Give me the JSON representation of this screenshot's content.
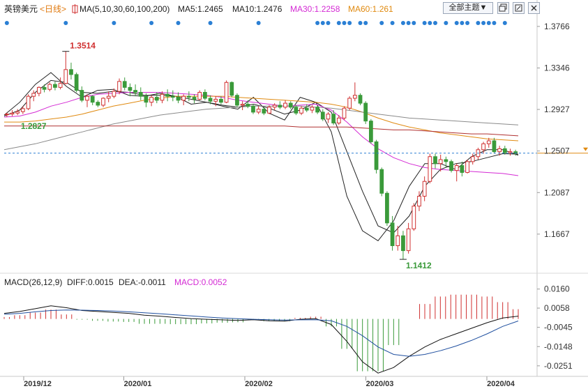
{
  "header": {
    "symbol": "英镑美元",
    "period": "<日线>",
    "ma_label": "MA(5,10,30,60,100,200)",
    "ma5": "MA5:1.2465",
    "ma10": "MA10:1.2476",
    "ma30": "MA30:1.2258",
    "ma60": "MA60:1.261",
    "theme_button": "全部主题▼",
    "icons": [
      "restore-window-icon",
      "minimize-window-icon",
      "close-icon"
    ]
  },
  "macd_header": {
    "label": "MACD(26,12,9)",
    "diff": "DIFF:0.0015",
    "dea": "DEA:-0.0011",
    "macd": "MACD:0.0052"
  },
  "colors": {
    "up": "#d03030",
    "down": "#3a9a3a",
    "ma5": "#222222",
    "ma10": "#222222",
    "ma30": "#d42ad4",
    "ma60": "#e08a10",
    "ma100": "#8a8a8a",
    "ma200": "#b03030",
    "event_dot": "#2a7fd4",
    "current_price_line": "#2a7fd4"
  },
  "chart_data": [
    {
      "type": "candlestick",
      "title": "英镑美元 日线",
      "x_ticks": [
        "2019/12",
        "2020/01",
        "2020/02",
        "2020/03",
        "2020/04"
      ],
      "y_ticks": [
        "1.3766",
        "1.3346",
        "1.2927",
        "1.2507",
        "1.2087",
        "1.1667"
      ],
      "ylim": [
        1.13,
        1.385
      ],
      "annotations": [
        {
          "text": "1.3514",
          "kind": "high"
        },
        {
          "text": "1.2827",
          "kind": "start"
        },
        {
          "text": "1.1412",
          "kind": "low"
        }
      ],
      "current_price": 1.2485,
      "candles": [
        [
          1.2874,
          1.2893,
          1.285,
          1.288
        ],
        [
          1.288,
          1.292,
          1.286,
          1.289
        ],
        [
          1.289,
          1.293,
          1.287,
          1.2905
        ],
        [
          1.2905,
          1.296,
          1.288,
          1.2935
        ],
        [
          1.2935,
          1.308,
          1.292,
          1.306
        ],
        [
          1.306,
          1.312,
          1.301,
          1.309
        ],
        [
          1.309,
          1.316,
          1.306,
          1.315
        ],
        [
          1.315,
          1.318,
          1.31,
          1.313
        ],
        [
          1.313,
          1.32,
          1.311,
          1.318
        ],
        [
          1.318,
          1.321,
          1.312,
          1.315
        ],
        [
          1.315,
          1.325,
          1.313,
          1.319
        ],
        [
          1.319,
          1.3514,
          1.318,
          1.333
        ],
        [
          1.333,
          1.34,
          1.323,
          1.328
        ],
        [
          1.328,
          1.33,
          1.31,
          1.312
        ],
        [
          1.312,
          1.316,
          1.3,
          1.302
        ],
        [
          1.302,
          1.308,
          1.295,
          1.306
        ],
        [
          1.306,
          1.307,
          1.297,
          1.3
        ],
        [
          1.3,
          1.302,
          1.295,
          1.297
        ],
        [
          1.297,
          1.305,
          1.295,
          1.304
        ],
        [
          1.304,
          1.311,
          1.3,
          1.306
        ],
        [
          1.306,
          1.314,
          1.304,
          1.311
        ],
        [
          1.311,
          1.324,
          1.308,
          1.321
        ],
        [
          1.321,
          1.325,
          1.312,
          1.315
        ],
        [
          1.315,
          1.319,
          1.306,
          1.312
        ],
        [
          1.312,
          1.318,
          1.306,
          1.31
        ],
        [
          1.31,
          1.315,
          1.302,
          1.306
        ],
        [
          1.306,
          1.309,
          1.295,
          1.3
        ],
        [
          1.3,
          1.307,
          1.296,
          1.305
        ],
        [
          1.305,
          1.31,
          1.299,
          1.302
        ],
        [
          1.302,
          1.311,
          1.299,
          1.308
        ],
        [
          1.308,
          1.313,
          1.301,
          1.306
        ],
        [
          1.306,
          1.312,
          1.301,
          1.305
        ],
        [
          1.305,
          1.31,
          1.299,
          1.302
        ],
        [
          1.302,
          1.308,
          1.297,
          1.306
        ],
        [
          1.306,
          1.311,
          1.301,
          1.305
        ],
        [
          1.305,
          1.308,
          1.299,
          1.303
        ],
        [
          1.303,
          1.312,
          1.302,
          1.31
        ],
        [
          1.31,
          1.313,
          1.302,
          1.304
        ],
        [
          1.304,
          1.307,
          1.298,
          1.301
        ],
        [
          1.301,
          1.306,
          1.296,
          1.303
        ],
        [
          1.303,
          1.306,
          1.298,
          1.3
        ],
        [
          1.3,
          1.322,
          1.299,
          1.32
        ],
        [
          1.32,
          1.321,
          1.305,
          1.307
        ],
        [
          1.307,
          1.309,
          1.295,
          1.297
        ],
        [
          1.297,
          1.301,
          1.292,
          1.298
        ],
        [
          1.298,
          1.302,
          1.294,
          1.296
        ],
        [
          1.296,
          1.298,
          1.288,
          1.29
        ],
        [
          1.29,
          1.296,
          1.288,
          1.293
        ],
        [
          1.293,
          1.295,
          1.287,
          1.289
        ],
        [
          1.289,
          1.297,
          1.288,
          1.295
        ],
        [
          1.295,
          1.299,
          1.292,
          1.297
        ],
        [
          1.297,
          1.301,
          1.293,
          1.295
        ],
        [
          1.295,
          1.302,
          1.293,
          1.299
        ],
        [
          1.299,
          1.301,
          1.293,
          1.295
        ],
        [
          1.295,
          1.297,
          1.287,
          1.289
        ],
        [
          1.289,
          1.296,
          1.287,
          1.294
        ],
        [
          1.294,
          1.298,
          1.29,
          1.292
        ],
        [
          1.292,
          1.297,
          1.289,
          1.295
        ],
        [
          1.295,
          1.296,
          1.288,
          1.29
        ],
        [
          1.29,
          1.293,
          1.281,
          1.283
        ],
        [
          1.283,
          1.29,
          1.279,
          1.288
        ],
        [
          1.288,
          1.292,
          1.277,
          1.279
        ],
        [
          1.279,
          1.287,
          1.277,
          1.284
        ],
        [
          1.284,
          1.296,
          1.282,
          1.294
        ],
        [
          1.294,
          1.306,
          1.292,
          1.304
        ],
        [
          1.304,
          1.32,
          1.301,
          1.307
        ],
        [
          1.307,
          1.309,
          1.297,
          1.299
        ],
        [
          1.299,
          1.301,
          1.278,
          1.281
        ],
        [
          1.281,
          1.283,
          1.258,
          1.26
        ],
        [
          1.26,
          1.262,
          1.228,
          1.232
        ],
        [
          1.232,
          1.234,
          1.205,
          1.208
        ],
        [
          1.208,
          1.21,
          1.175,
          1.178
        ],
        [
          1.178,
          1.185,
          1.15,
          1.155
        ],
        [
          1.155,
          1.175,
          1.15,
          1.165
        ],
        [
          1.165,
          1.17,
          1.1412,
          1.15
        ],
        [
          1.15,
          1.178,
          1.147,
          1.172
        ],
        [
          1.172,
          1.198,
          1.17,
          1.195
        ],
        [
          1.195,
          1.21,
          1.19,
          1.205
        ],
        [
          1.205,
          1.225,
          1.2,
          1.22
        ],
        [
          1.22,
          1.248,
          1.218,
          1.245
        ],
        [
          1.245,
          1.248,
          1.233,
          1.238
        ],
        [
          1.238,
          1.247,
          1.23,
          1.242
        ],
        [
          1.242,
          1.245,
          1.234,
          1.24
        ],
        [
          1.24,
          1.242,
          1.229,
          1.231
        ],
        [
          1.231,
          1.238,
          1.22,
          1.236
        ],
        [
          1.236,
          1.24,
          1.225,
          1.229
        ],
        [
          1.229,
          1.242,
          1.228,
          1.24
        ],
        [
          1.24,
          1.248,
          1.237,
          1.245
        ],
        [
          1.245,
          1.254,
          1.242,
          1.252
        ],
        [
          1.252,
          1.26,
          1.248,
          1.258
        ],
        [
          1.258,
          1.264,
          1.254,
          1.261
        ],
        [
          1.261,
          1.264,
          1.248,
          1.25
        ],
        [
          1.25,
          1.256,
          1.246,
          1.253
        ],
        [
          1.253,
          1.256,
          1.247,
          1.249
        ],
        [
          1.249,
          1.253,
          1.246,
          1.25
        ],
        [
          1.25,
          1.252,
          1.246,
          1.2485
        ]
      ],
      "series": [
        {
          "name": "MA5",
          "values": [
            1.287,
            1.3,
            1.318,
            1.33,
            1.316,
            1.305,
            1.312,
            1.313,
            1.307,
            1.306,
            1.309,
            1.306,
            1.298,
            1.3,
            1.296,
            1.293,
            1.305,
            1.289,
            1.282,
            1.305,
            1.3,
            1.27,
            1.205,
            1.17,
            1.16,
            1.18,
            1.215,
            1.238,
            1.238,
            1.232,
            1.245,
            1.252,
            1.252,
            1.2465
          ]
        },
        {
          "name": "MA10",
          "values": [
            1.286,
            1.292,
            1.31,
            1.322,
            1.32,
            1.31,
            1.309,
            1.311,
            1.31,
            1.307,
            1.307,
            1.306,
            1.303,
            1.3,
            1.297,
            1.295,
            1.298,
            1.294,
            1.288,
            1.292,
            1.3,
            1.29,
            1.25,
            1.21,
            1.175,
            1.168,
            1.185,
            1.215,
            1.232,
            1.238,
            1.24,
            1.244,
            1.248,
            1.2476
          ]
        },
        {
          "name": "MA30",
          "values": [
            1.285,
            1.286,
            1.29,
            1.296,
            1.3,
            1.305,
            1.308,
            1.309,
            1.31,
            1.31,
            1.31,
            1.309,
            1.308,
            1.307,
            1.305,
            1.302,
            1.3,
            1.298,
            1.296,
            1.297,
            1.298,
            1.292,
            1.28,
            1.265,
            1.253,
            1.244,
            1.238,
            1.234,
            1.232,
            1.231,
            1.23,
            1.229,
            1.228,
            1.2258
          ]
        },
        {
          "name": "MA60",
          "values": [
            1.28,
            1.28,
            1.281,
            1.283,
            1.285,
            1.288,
            1.292,
            1.296,
            1.299,
            1.302,
            1.304,
            1.306,
            1.306,
            1.306,
            1.306,
            1.305,
            1.304,
            1.303,
            1.302,
            1.301,
            1.3,
            1.298,
            1.295,
            1.29,
            1.284,
            1.279,
            1.275,
            1.272,
            1.269,
            1.267,
            1.265,
            1.263,
            1.262,
            1.261
          ]
        },
        {
          "name": "MA100",
          "values": [
            1.252,
            1.255,
            1.258,
            1.262,
            1.266,
            1.27,
            1.274,
            1.278,
            1.281,
            1.284,
            1.287,
            1.289,
            1.291,
            1.293,
            1.294,
            1.295,
            1.296,
            1.296,
            1.296,
            1.296,
            1.295,
            1.294,
            1.292,
            1.29,
            1.288,
            1.286,
            1.284,
            1.283,
            1.282,
            1.281,
            1.28,
            1.279,
            1.278,
            1.277
          ]
        },
        {
          "name": "MA200",
          "values": [
            1.276,
            1.276,
            1.276,
            1.276,
            1.276,
            1.276,
            1.276,
            1.276,
            1.276,
            1.276,
            1.276,
            1.276,
            1.276,
            1.276,
            1.276,
            1.276,
            1.276,
            1.276,
            1.276,
            1.275,
            1.275,
            1.275,
            1.275,
            1.274,
            1.273,
            1.272,
            1.272,
            1.271,
            1.27,
            1.269,
            1.268,
            1.268,
            1.267,
            1.266
          ]
        }
      ]
    },
    {
      "type": "macd",
      "title": "MACD(26,12,9)",
      "y_ticks": [
        "0.0160",
        "0.0058",
        "-0.0045",
        "-0.0148",
        "-0.0251"
      ],
      "ylim": [
        -0.03,
        0.02
      ],
      "series": [
        {
          "name": "DIFF",
          "values": [
            0.003,
            0.004,
            0.0055,
            0.007,
            0.006,
            0.0045,
            0.004,
            0.0035,
            0.003,
            0.002,
            0.0015,
            0.0008,
            0.0002,
            -0.0002,
            -0.0005,
            -0.0008,
            -0.0004,
            -0.001,
            -0.0012,
            -0.0002,
            0.0002,
            -0.003,
            -0.012,
            -0.023,
            -0.029,
            -0.026,
            -0.02,
            -0.015,
            -0.011,
            -0.008,
            -0.005,
            -0.002,
            0.0005,
            0.0015
          ]
        },
        {
          "name": "DEA",
          "values": [
            0.0025,
            0.003,
            0.0038,
            0.0045,
            0.0048,
            0.0047,
            0.0045,
            0.0042,
            0.0038,
            0.0033,
            0.0028,
            0.0022,
            0.0016,
            0.001,
            0.0005,
            0.0001,
            -0.0002,
            -0.0004,
            -0.0006,
            -0.0005,
            -0.0004,
            -0.001,
            -0.004,
            -0.009,
            -0.015,
            -0.019,
            -0.02,
            -0.019,
            -0.017,
            -0.0145,
            -0.0115,
            -0.008,
            -0.004,
            -0.0011
          ]
        }
      ],
      "histogram": [
        0.001,
        0.002,
        0.0034,
        0.005,
        0.0024,
        -0.0004,
        -0.001,
        -0.0014,
        -0.0016,
        -0.0026,
        -0.0026,
        -0.0028,
        -0.0028,
        -0.0024,
        -0.002,
        -0.0018,
        -0.0004,
        -0.0012,
        -0.0012,
        0.0006,
        0.0012,
        -0.004,
        -0.016,
        -0.028,
        -0.028,
        -0.014,
        0.0,
        0.008,
        0.012,
        0.013,
        0.013,
        0.012,
        0.009,
        0.0052
      ]
    }
  ]
}
